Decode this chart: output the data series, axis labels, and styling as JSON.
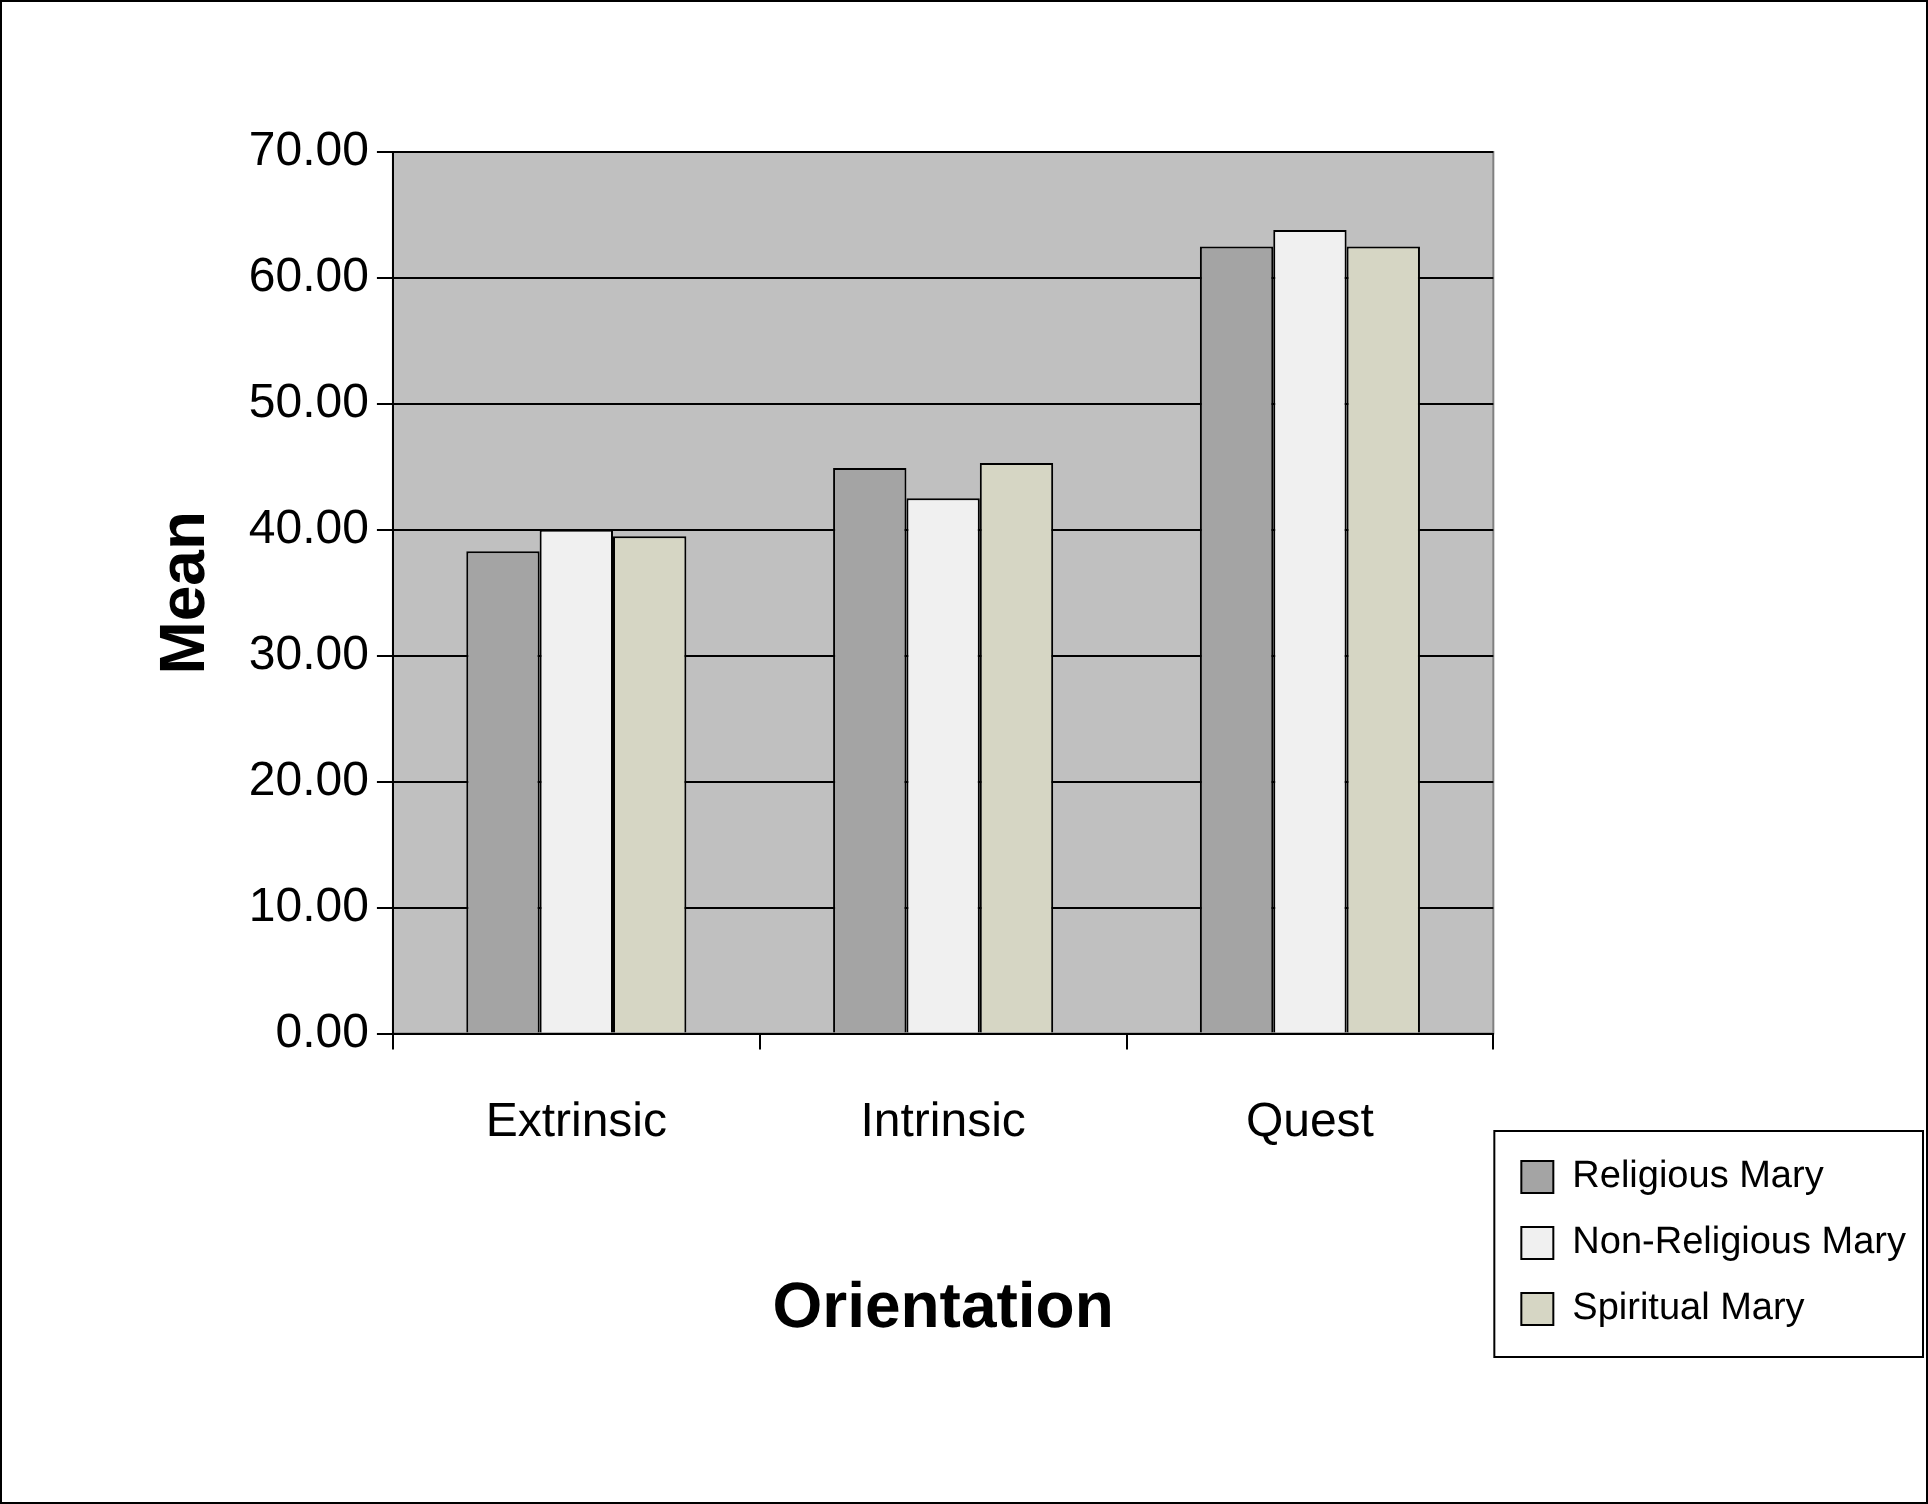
{
  "chart_data": {
    "type": "bar",
    "xlabel": "Orientation",
    "ylabel": "Mean",
    "categories": [
      "Extrinsic",
      "Intrinsic",
      "Quest"
    ],
    "series": [
      {
        "name": "Religious Mary",
        "color": "#a4a4a4",
        "values": [
          38.3,
          44.9,
          62.5
        ]
      },
      {
        "name": "Non-Religious Mary",
        "color": "#f0f0f0",
        "values": [
          40.0,
          42.5,
          63.8
        ]
      },
      {
        "name": "Spiritual Mary",
        "color": "#d6d6c4",
        "values": [
          39.5,
          45.3,
          62.5
        ]
      }
    ],
    "ylim": [
      0,
      70
    ],
    "yticks": [
      {
        "value": 0,
        "label": "0.00"
      },
      {
        "value": 10,
        "label": "10.00"
      },
      {
        "value": 20,
        "label": "20.00"
      },
      {
        "value": 30,
        "label": "30.00"
      },
      {
        "value": 40,
        "label": "40.00"
      },
      {
        "value": 50,
        "label": "50.00"
      },
      {
        "value": 60,
        "label": "60.00"
      },
      {
        "value": 70,
        "label": "70.00"
      }
    ],
    "grid": "y",
    "legend": "bottom right"
  }
}
